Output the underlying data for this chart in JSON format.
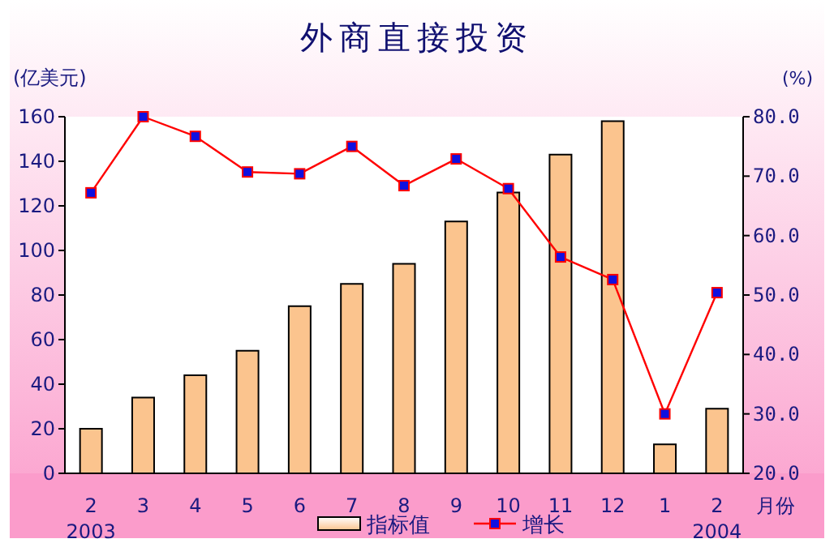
{
  "chart_data": {
    "type": "bar",
    "title": "外商直接投资",
    "ylabel": "(亿美元)",
    "y2label": "(%)",
    "xlabel": "月份",
    "categories": [
      "2",
      "3",
      "4",
      "5",
      "6",
      "7",
      "8",
      "9",
      "10",
      "11",
      "12",
      "1",
      "2"
    ],
    "series": [
      {
        "name": "指标值",
        "color": "#fbc48e",
        "values": [
          20,
          34,
          44,
          55,
          75,
          85,
          94,
          113,
          126,
          143,
          158,
          13,
          29
        ]
      },
      {
        "name": "增长",
        "type": "line",
        "axis": "y2",
        "color": "#ff0000",
        "marker": "square",
        "values": [
          67.2,
          80,
          76.7,
          70.7,
          70.4,
          75,
          68.4,
          72.9,
          67.9,
          56.4,
          52.6,
          30,
          50.4
        ]
      }
    ],
    "ylim": [
      0,
      160
    ],
    "yticks": [
      0,
      20,
      40,
      60,
      80,
      100,
      120,
      140,
      160
    ],
    "y2lim": [
      20,
      80
    ],
    "y2ticks": [
      {
        "value": 20,
        "label": "20.0"
      },
      {
        "value": 30,
        "label": "30.0"
      },
      {
        "value": 40,
        "label": "40.0"
      },
      {
        "value": 50,
        "label": "50.0"
      },
      {
        "value": 60,
        "label": "60.0"
      },
      {
        "value": 70,
        "label": "70.0"
      },
      {
        "value": 80,
        "label": "80.0"
      }
    ],
    "annotations": [
      "2003",
      "2004"
    ],
    "legend": "bottom",
    "grid": false
  }
}
